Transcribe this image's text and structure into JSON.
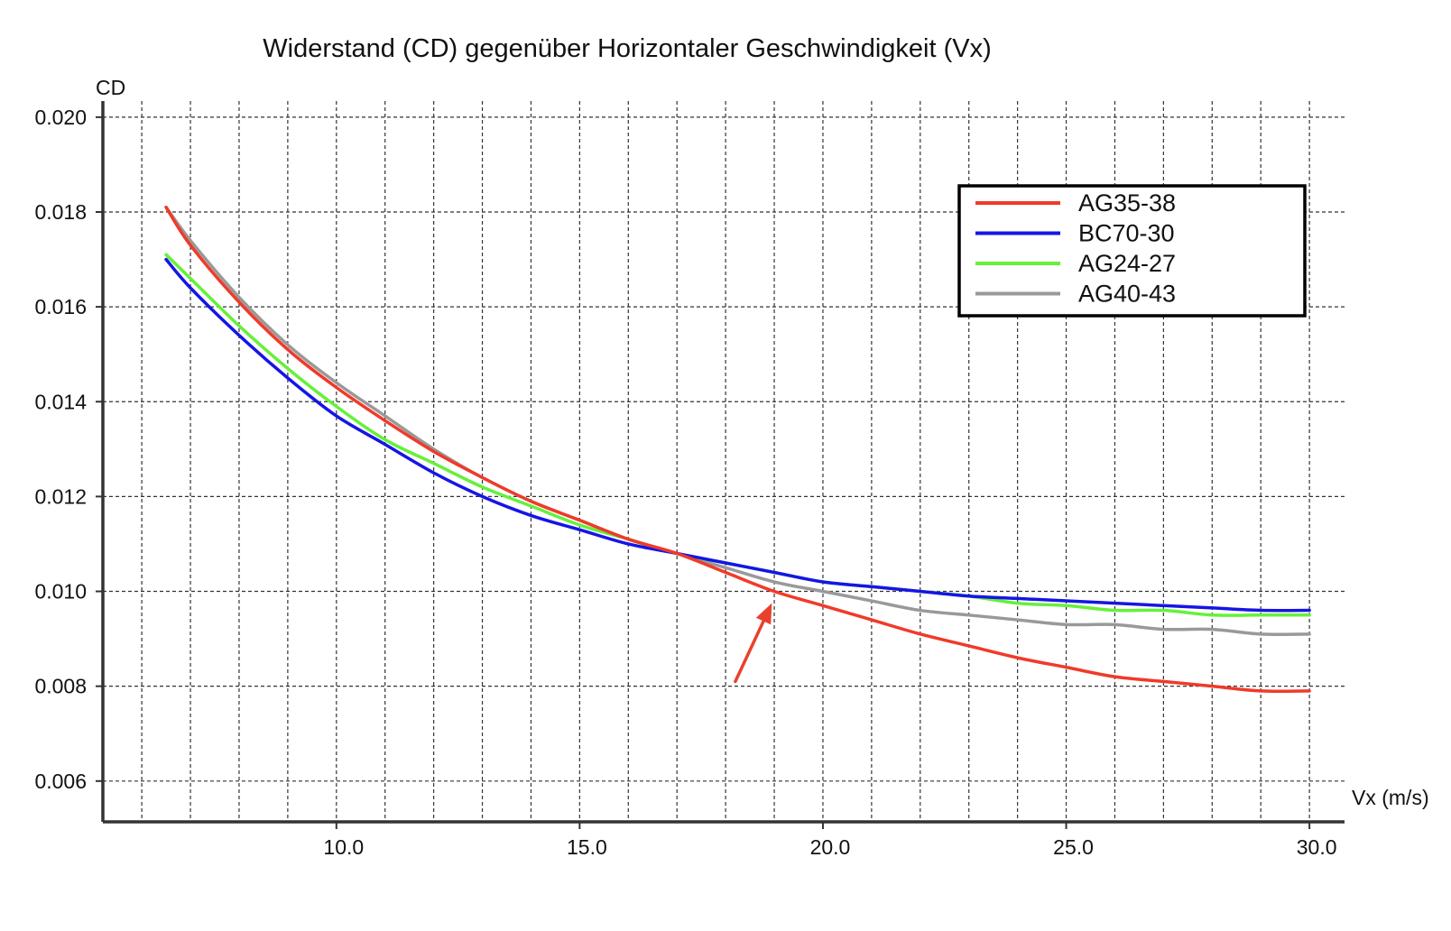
{
  "chart_data": {
    "type": "line",
    "title": "Widerstand (CD) gegenüber Horizontaler Geschwindigkeit (Vx)",
    "xlabel": "Vx (m/s)",
    "ylabel": "CD",
    "xlim": [
      5.2,
      30.35
    ],
    "ylim": [
      0.00514,
      0.02034
    ],
    "x_ticks": [
      10.0,
      15.0,
      20.0,
      25.0,
      30.0
    ],
    "x_tick_labels": [
      "10.0",
      "15.0",
      "20.0",
      "25.0",
      "30.0"
    ],
    "y_ticks": [
      0.006,
      0.008,
      0.01,
      0.012,
      0.014,
      0.016,
      0.018,
      0.02
    ],
    "y_tick_labels": [
      "0.006",
      "0.008",
      "0.010",
      "0.012",
      "0.014",
      "0.016",
      "0.018",
      "0.020"
    ],
    "x_minor_grid_step": 1.0,
    "grid": true,
    "legend_position": "top-right",
    "series": [
      {
        "name": "AG35-38",
        "color": "#f03a2a",
        "x": [
          6.5,
          7,
          8,
          9,
          10,
          11,
          12,
          13,
          14,
          15,
          16,
          17,
          18,
          19,
          20,
          21,
          22,
          23,
          24,
          25,
          26,
          27,
          28,
          29,
          30
        ],
        "y": [
          0.0181,
          0.0173,
          0.0161,
          0.0151,
          0.0143,
          0.0136,
          0.01295,
          0.0124,
          0.0119,
          0.0115,
          0.0111,
          0.0108,
          0.0104,
          0.01,
          0.0097,
          0.0094,
          0.0091,
          0.00885,
          0.0086,
          0.0084,
          0.0082,
          0.0081,
          0.008,
          0.0079,
          0.0079
        ]
      },
      {
        "name": "BC70-30",
        "color": "#1515e6",
        "x": [
          6.5,
          7,
          8,
          9,
          10,
          11,
          12,
          13,
          14,
          15,
          16,
          17,
          18,
          19,
          20,
          21,
          22,
          23,
          24,
          25,
          26,
          27,
          28,
          29,
          30
        ],
        "y": [
          0.017,
          0.0164,
          0.0154,
          0.0145,
          0.0137,
          0.0131,
          0.0125,
          0.012,
          0.0116,
          0.0113,
          0.011,
          0.0108,
          0.0106,
          0.0104,
          0.0102,
          0.0101,
          0.01,
          0.0099,
          0.00985,
          0.0098,
          0.00975,
          0.0097,
          0.00965,
          0.0096,
          0.0096
        ]
      },
      {
        "name": "AG24-27",
        "color": "#66f03a",
        "x": [
          6.5,
          7,
          8,
          9,
          10,
          11,
          12,
          13,
          14,
          15,
          16,
          17,
          18,
          19,
          20,
          21,
          22,
          23,
          24,
          25,
          26,
          27,
          28,
          29,
          30
        ],
        "y": [
          0.0171,
          0.0166,
          0.0156,
          0.0147,
          0.0139,
          0.0132,
          0.0127,
          0.0122,
          0.0118,
          0.0114,
          0.0111,
          0.0108,
          0.0106,
          0.0104,
          0.0102,
          0.0101,
          0.01,
          0.0099,
          0.00975,
          0.0097,
          0.0096,
          0.0096,
          0.0095,
          0.0095,
          0.0095
        ]
      },
      {
        "name": "AG40-43",
        "color": "#999999",
        "x": [
          6.5,
          7,
          8,
          9,
          10,
          11,
          12,
          13,
          14,
          15,
          16,
          17,
          18,
          19,
          20,
          21,
          22,
          23,
          24,
          25,
          26,
          27,
          28,
          29,
          30
        ],
        "y": [
          0.0181,
          0.0174,
          0.0162,
          0.0152,
          0.0144,
          0.0137,
          0.013,
          0.0124,
          0.0119,
          0.0115,
          0.0111,
          0.0108,
          0.0105,
          0.0102,
          0.01,
          0.0098,
          0.0096,
          0.0095,
          0.0094,
          0.0093,
          0.0093,
          0.0092,
          0.0092,
          0.0091,
          0.0091
        ]
      }
    ],
    "annotations": [
      {
        "type": "arrow",
        "color": "#e8412e",
        "from": [
          18.2,
          0.0081
        ],
        "to": [
          18.95,
          0.00975
        ]
      }
    ]
  }
}
